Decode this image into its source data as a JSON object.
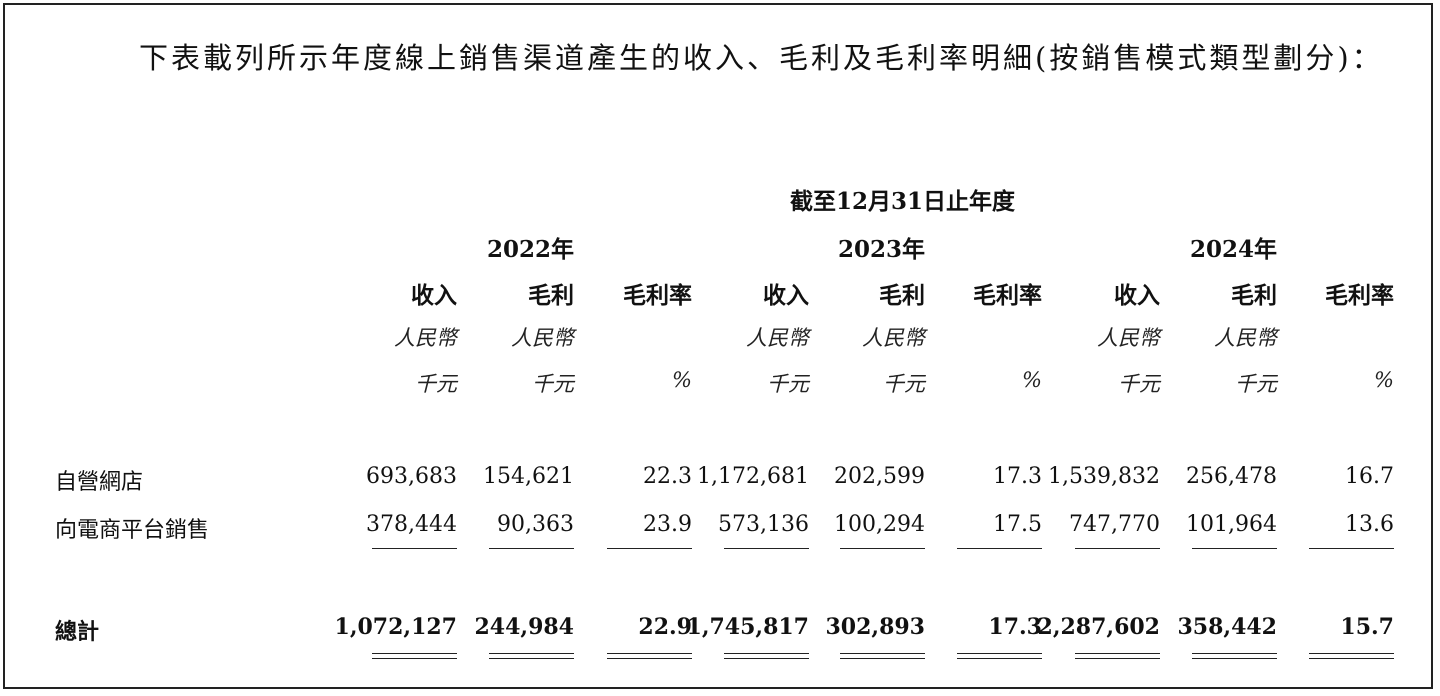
{
  "intro_text": "下表載列所示年度線上銷售渠道產生的收入、毛利及毛利率明細(按銷售模式類型劃分)：",
  "period_header": "截至12月31日止年度",
  "years": [
    "2022年",
    "2023年",
    "2024年"
  ],
  "col_headers": [
    "收入",
    "毛利",
    "毛利率",
    "收入",
    "毛利",
    "毛利率",
    "收入",
    "毛利",
    "毛利率"
  ],
  "currency_labels": [
    "人民幣",
    "人民幣",
    "",
    "人民幣",
    "人民幣",
    "",
    "人民幣",
    "人民幣",
    ""
  ],
  "unit_labels": [
    "千元",
    "千元",
    "%",
    "千元",
    "千元",
    "%",
    "千元",
    "千元",
    "%"
  ],
  "rows": [
    {
      "label": "自營網店",
      "values": [
        "693,683",
        "154,621",
        "22.3",
        "1,172,681",
        "202,599",
        "17.3",
        "1,539,832",
        "256,478",
        "16.7"
      ]
    },
    {
      "label": "向電商平台銷售",
      "values": [
        "378,444",
        "90,363",
        "23.9",
        "573,136",
        "100,294",
        "17.5",
        "747,770",
        "101,964",
        "13.6"
      ]
    }
  ],
  "total": {
    "label": "總計",
    "values": [
      "1,072,127",
      "244,984",
      "22.9",
      "1,745,817",
      "302,893",
      "17.3",
      "2,287,602",
      "358,442",
      "15.7"
    ]
  }
}
